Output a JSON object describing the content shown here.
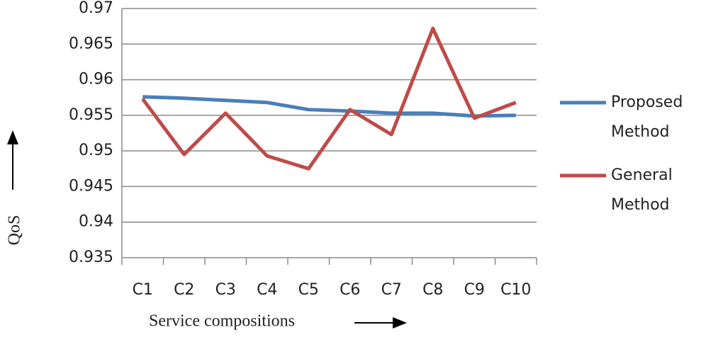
{
  "chart_data": {
    "type": "line",
    "categories": [
      "C1",
      "C2",
      "C3",
      "C4",
      "C5",
      "C6",
      "C7",
      "C8",
      "C9",
      "C10"
    ],
    "series": [
      {
        "name": "Proposed Method",
        "color": "#4a7ebb",
        "values": [
          0.9576,
          0.9574,
          0.9571,
          0.9568,
          0.9558,
          0.9556,
          0.9553,
          0.9553,
          0.9549,
          0.955
        ]
      },
      {
        "name": "General Method",
        "color": "#be4b48",
        "values": [
          0.9573,
          0.9495,
          0.9553,
          0.9493,
          0.9475,
          0.9558,
          0.9523,
          0.9672,
          0.9546,
          0.9568
        ]
      }
    ],
    "ylim": [
      0.935,
      0.97
    ],
    "yticks": [
      0.935,
      0.94,
      0.945,
      0.95,
      0.955,
      0.96,
      0.965,
      0.97
    ],
    "grid": true,
    "legend": "right",
    "xlabel": "Service compositions",
    "ylabel": "QoS"
  }
}
